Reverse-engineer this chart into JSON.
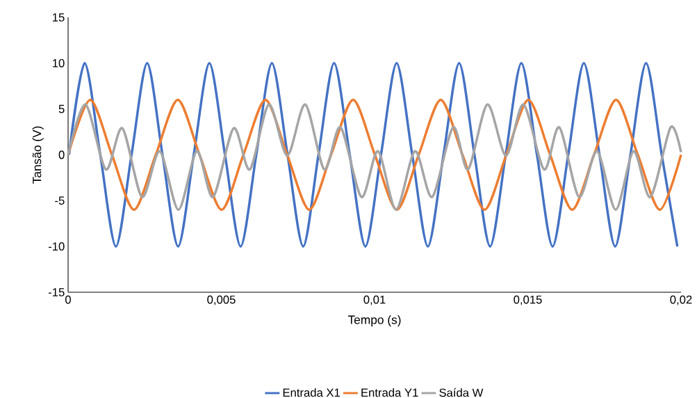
{
  "chart_data": {
    "type": "line",
    "xlabel": "Tempo (s)",
    "ylabel": "Tansão (V)",
    "xlim": [
      0,
      0.02
    ],
    "ylim": [
      -15,
      15
    ],
    "xticks": [
      0,
      {
        "value": 0.005,
        "label": "0,005"
      },
      {
        "value": 0.01,
        "label": "0,01"
      },
      {
        "value": 0.015,
        "label": "0,015"
      },
      {
        "value": 0.02,
        "label": "0,02"
      }
    ],
    "yticks": [
      -15,
      -10,
      -5,
      0,
      5,
      10,
      15
    ],
    "legend": "bottom",
    "grid": false,
    "series": [
      {
        "name": "Entrada X1",
        "color": "#4472c4",
        "x": [
          3e-05,
          0.00054,
          0.00105,
          0.00156,
          0.00207,
          0.00258,
          0.00308,
          0.00359,
          0.0041,
          0.00461,
          0.00512,
          0.00563,
          0.00614,
          0.00665,
          0.00716,
          0.00767,
          0.00817,
          0.00868,
          0.00919,
          0.0097,
          0.01021,
          0.01072,
          0.01123,
          0.01174,
          0.01225,
          0.01276,
          0.01326,
          0.01377,
          0.01428,
          0.01479,
          0.0153,
          0.01581,
          0.01632,
          0.01683,
          0.01734,
          0.01785,
          0.01835,
          0.01886,
          0.01937,
          0.01988
        ],
        "values": [
          0,
          10,
          0,
          -10,
          0,
          10,
          0,
          -10,
          0,
          10,
          0,
          -10,
          0,
          10,
          0,
          -10,
          0,
          10,
          0,
          -10,
          0,
          10,
          0,
          -10,
          0,
          10,
          0,
          -10,
          0,
          10,
          0,
          -10,
          0,
          10,
          0,
          -10,
          0,
          10,
          0,
          -10
        ]
      },
      {
        "name": "Entrada Y1",
        "color": "#ed7d31",
        "x": [
          0,
          0.00072,
          0.00143,
          0.00215,
          0.00286,
          0.00358,
          0.00429,
          0.00501,
          0.00572,
          0.00644,
          0.00715,
          0.00787,
          0.00858,
          0.0093,
          0.01001,
          0.01073,
          0.01144,
          0.01216,
          0.01287,
          0.01359,
          0.0143,
          0.01502,
          0.01573,
          0.01645,
          0.01716,
          0.01788,
          0.01859,
          0.01931,
          0.02
        ],
        "values": [
          0,
          6,
          0,
          -6,
          0,
          6,
          0,
          -6,
          0,
          6,
          0,
          -6,
          0,
          6,
          0,
          -6,
          0,
          6,
          0,
          -6,
          0,
          6,
          0,
          -6,
          0,
          6,
          0,
          -6,
          0
        ]
      },
      {
        "name": "Saída W",
        "color": "#a5a5a5",
        "x": [
          0,
          0.00057,
          0.00123,
          0.00177,
          0.00241,
          0.00299,
          0.0036,
          0.0042,
          0.00473,
          0.0054,
          0.00593,
          0.00655,
          0.00715,
          0.00774,
          0.00836,
          0.00889,
          0.00957,
          0.01011,
          0.0107,
          0.01132,
          0.01188,
          0.01256,
          0.01305,
          0.01368,
          0.01429,
          0.01486,
          0.01553,
          0.01603,
          0.01667,
          0.01726,
          0.01787,
          0.01845,
          0.019,
          0.01966,
          0.02
        ],
        "values": [
          0,
          5.5,
          -1.6,
          2.9,
          -4.6,
          0.4,
          -6,
          0.4,
          -4.6,
          2.9,
          -1.6,
          5.5,
          -0.1,
          5.5,
          -1.6,
          3,
          -4.6,
          0.4,
          -6,
          0.4,
          -4.6,
          3,
          -1.6,
          5.5,
          -0.1,
          5.5,
          -1.6,
          3,
          -4.6,
          0.4,
          -6,
          0.4,
          -4.6,
          3,
          0.3
        ]
      }
    ]
  }
}
